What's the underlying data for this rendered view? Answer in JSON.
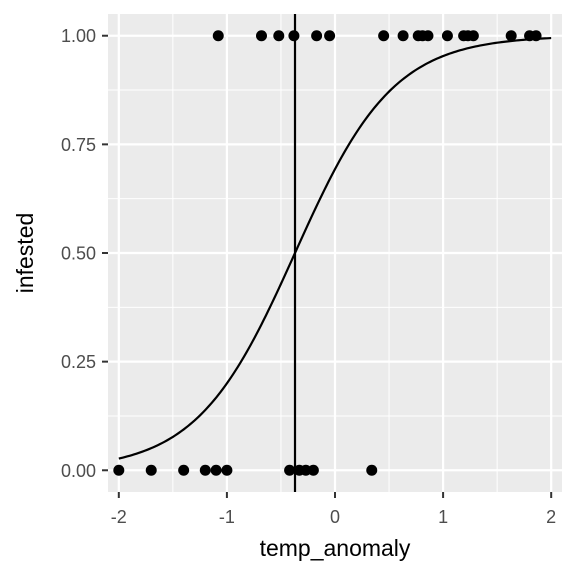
{
  "chart_data": {
    "type": "scatter",
    "title": "",
    "xlabel": "temp_anomaly",
    "ylabel": "infested",
    "xlim": [
      -2.1,
      2.1
    ],
    "ylim": [
      -0.05,
      1.05
    ],
    "x_ticks": [
      -2,
      -1,
      0,
      1,
      2
    ],
    "x_tick_labels": [
      "-2",
      "-1",
      "0",
      "1",
      "2"
    ],
    "y_ticks": [
      0,
      0.25,
      0.5,
      0.75,
      1.0
    ],
    "y_tick_labels": [
      "0.00",
      "0.25",
      "0.50",
      "0.75",
      "1.00"
    ],
    "grid": true,
    "legend": "none",
    "colors": {
      "panel": "#ebebeb",
      "grid": "#ffffff",
      "points": "#000000",
      "curve": "#000000"
    },
    "points": {
      "x": [
        -2.0,
        -1.7,
        -1.4,
        -1.2,
        -1.1,
        -1.0,
        -0.42,
        -0.33,
        -0.27,
        -0.2,
        0.34,
        -1.08,
        -0.68,
        -0.52,
        -0.38,
        -0.17,
        -0.05,
        0.45,
        0.63,
        0.77,
        0.81,
        0.86,
        1.04,
        1.19,
        1.23,
        1.28,
        1.63,
        1.8,
        1.86
      ],
      "y": [
        0,
        0,
        0,
        0,
        0,
        0,
        0,
        0,
        0,
        0,
        0,
        1,
        1,
        1,
        1,
        1,
        1,
        1,
        1,
        1,
        1,
        1,
        1,
        1,
        1,
        1,
        1,
        1,
        1
      ]
    },
    "logistic_curve": {
      "x_range": [
        -2,
        2
      ],
      "midpoint": -0.37,
      "slope": 2.2
    },
    "vline": {
      "x": -0.37
    }
  }
}
